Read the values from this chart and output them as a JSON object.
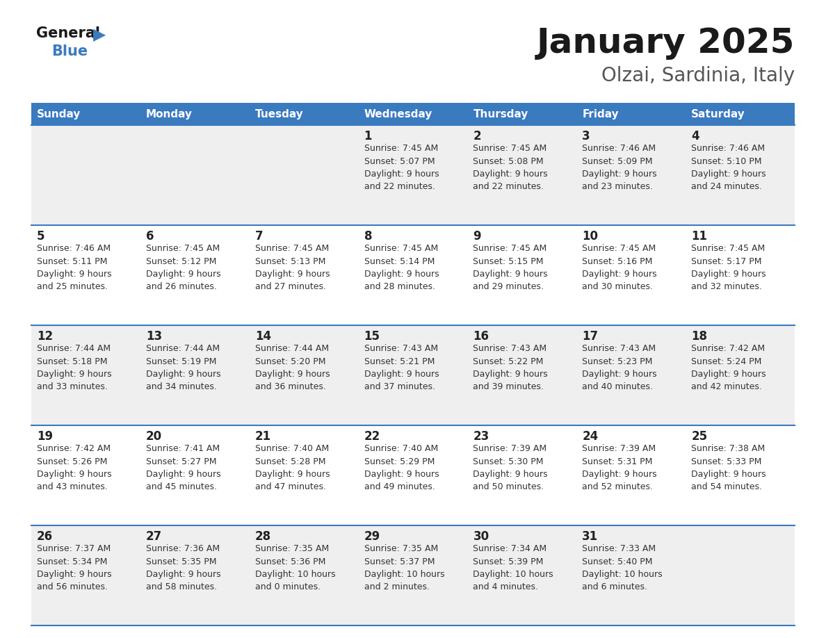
{
  "title": "January 2025",
  "subtitle": "Olzai, Sardinia, Italy",
  "days_of_week": [
    "Sunday",
    "Monday",
    "Tuesday",
    "Wednesday",
    "Thursday",
    "Friday",
    "Saturday"
  ],
  "header_bg": "#3a7abf",
  "header_text": "#ffffff",
  "row_bg_light": "#efefef",
  "row_bg_white": "#ffffff",
  "day_num_color": "#222222",
  "cell_text_color": "#333333",
  "title_color": "#1a1a1a",
  "subtitle_color": "#555555",
  "divider_color": "#3a7abf",
  "logo_general_color": "#1a1a1a",
  "logo_blue_color": "#3a7abf",
  "calendar_data": [
    [
      {
        "day": null,
        "sunrise": null,
        "sunset": null,
        "daylight": null
      },
      {
        "day": null,
        "sunrise": null,
        "sunset": null,
        "daylight": null
      },
      {
        "day": null,
        "sunrise": null,
        "sunset": null,
        "daylight": null
      },
      {
        "day": 1,
        "sunrise": "7:45 AM",
        "sunset": "5:07 PM",
        "daylight": "9 hours\nand 22 minutes."
      },
      {
        "day": 2,
        "sunrise": "7:45 AM",
        "sunset": "5:08 PM",
        "daylight": "9 hours\nand 22 minutes."
      },
      {
        "day": 3,
        "sunrise": "7:46 AM",
        "sunset": "5:09 PM",
        "daylight": "9 hours\nand 23 minutes."
      },
      {
        "day": 4,
        "sunrise": "7:46 AM",
        "sunset": "5:10 PM",
        "daylight": "9 hours\nand 24 minutes."
      }
    ],
    [
      {
        "day": 5,
        "sunrise": "7:46 AM",
        "sunset": "5:11 PM",
        "daylight": "9 hours\nand 25 minutes."
      },
      {
        "day": 6,
        "sunrise": "7:45 AM",
        "sunset": "5:12 PM",
        "daylight": "9 hours\nand 26 minutes."
      },
      {
        "day": 7,
        "sunrise": "7:45 AM",
        "sunset": "5:13 PM",
        "daylight": "9 hours\nand 27 minutes."
      },
      {
        "day": 8,
        "sunrise": "7:45 AM",
        "sunset": "5:14 PM",
        "daylight": "9 hours\nand 28 minutes."
      },
      {
        "day": 9,
        "sunrise": "7:45 AM",
        "sunset": "5:15 PM",
        "daylight": "9 hours\nand 29 minutes."
      },
      {
        "day": 10,
        "sunrise": "7:45 AM",
        "sunset": "5:16 PM",
        "daylight": "9 hours\nand 30 minutes."
      },
      {
        "day": 11,
        "sunrise": "7:45 AM",
        "sunset": "5:17 PM",
        "daylight": "9 hours\nand 32 minutes."
      }
    ],
    [
      {
        "day": 12,
        "sunrise": "7:44 AM",
        "sunset": "5:18 PM",
        "daylight": "9 hours\nand 33 minutes."
      },
      {
        "day": 13,
        "sunrise": "7:44 AM",
        "sunset": "5:19 PM",
        "daylight": "9 hours\nand 34 minutes."
      },
      {
        "day": 14,
        "sunrise": "7:44 AM",
        "sunset": "5:20 PM",
        "daylight": "9 hours\nand 36 minutes."
      },
      {
        "day": 15,
        "sunrise": "7:43 AM",
        "sunset": "5:21 PM",
        "daylight": "9 hours\nand 37 minutes."
      },
      {
        "day": 16,
        "sunrise": "7:43 AM",
        "sunset": "5:22 PM",
        "daylight": "9 hours\nand 39 minutes."
      },
      {
        "day": 17,
        "sunrise": "7:43 AM",
        "sunset": "5:23 PM",
        "daylight": "9 hours\nand 40 minutes."
      },
      {
        "day": 18,
        "sunrise": "7:42 AM",
        "sunset": "5:24 PM",
        "daylight": "9 hours\nand 42 minutes."
      }
    ],
    [
      {
        "day": 19,
        "sunrise": "7:42 AM",
        "sunset": "5:26 PM",
        "daylight": "9 hours\nand 43 minutes."
      },
      {
        "day": 20,
        "sunrise": "7:41 AM",
        "sunset": "5:27 PM",
        "daylight": "9 hours\nand 45 minutes."
      },
      {
        "day": 21,
        "sunrise": "7:40 AM",
        "sunset": "5:28 PM",
        "daylight": "9 hours\nand 47 minutes."
      },
      {
        "day": 22,
        "sunrise": "7:40 AM",
        "sunset": "5:29 PM",
        "daylight": "9 hours\nand 49 minutes."
      },
      {
        "day": 23,
        "sunrise": "7:39 AM",
        "sunset": "5:30 PM",
        "daylight": "9 hours\nand 50 minutes."
      },
      {
        "day": 24,
        "sunrise": "7:39 AM",
        "sunset": "5:31 PM",
        "daylight": "9 hours\nand 52 minutes."
      },
      {
        "day": 25,
        "sunrise": "7:38 AM",
        "sunset": "5:33 PM",
        "daylight": "9 hours\nand 54 minutes."
      }
    ],
    [
      {
        "day": 26,
        "sunrise": "7:37 AM",
        "sunset": "5:34 PM",
        "daylight": "9 hours\nand 56 minutes."
      },
      {
        "day": 27,
        "sunrise": "7:36 AM",
        "sunset": "5:35 PM",
        "daylight": "9 hours\nand 58 minutes."
      },
      {
        "day": 28,
        "sunrise": "7:35 AM",
        "sunset": "5:36 PM",
        "daylight": "10 hours\nand 0 minutes."
      },
      {
        "day": 29,
        "sunrise": "7:35 AM",
        "sunset": "5:37 PM",
        "daylight": "10 hours\nand 2 minutes."
      },
      {
        "day": 30,
        "sunrise": "7:34 AM",
        "sunset": "5:39 PM",
        "daylight": "10 hours\nand 4 minutes."
      },
      {
        "day": 31,
        "sunrise": "7:33 AM",
        "sunset": "5:40 PM",
        "daylight": "10 hours\nand 6 minutes."
      },
      {
        "day": null,
        "sunrise": null,
        "sunset": null,
        "daylight": null
      }
    ]
  ]
}
